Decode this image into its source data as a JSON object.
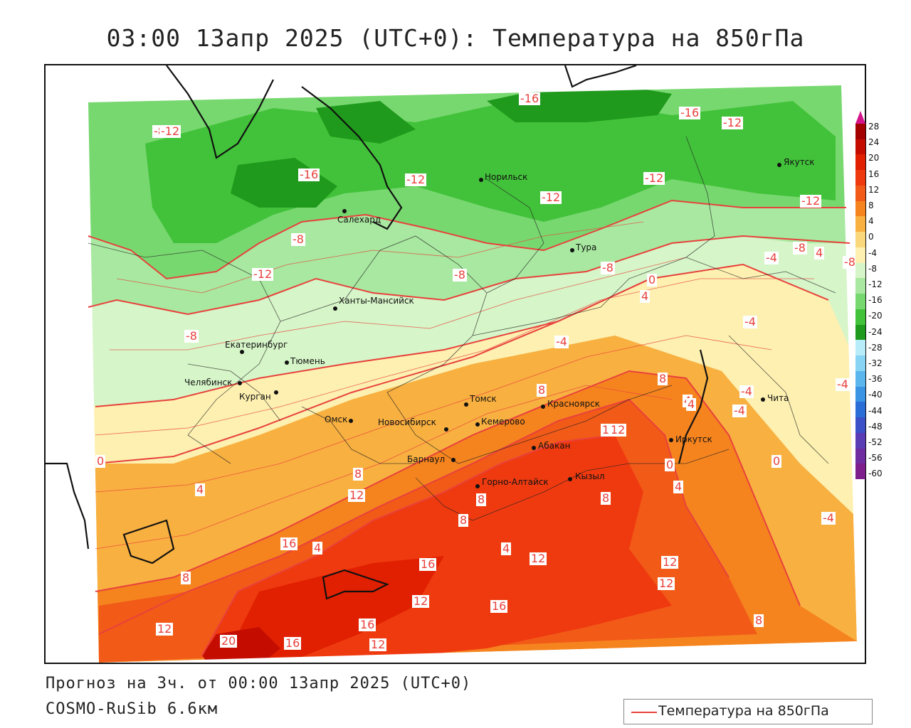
{
  "title": "03:00 13апр 2025 (UTC+0): Температура на 850гПа",
  "footer": {
    "forecast": "Прогноз на 3ч. от 00:00 13апр 2025 (UTC+0)",
    "model": "COSMO-RuSib 6.6км"
  },
  "legend": {
    "label": "Температура на 850гПа",
    "line_color": "#e8413c"
  },
  "colorbar": {
    "ticks": [
      "28",
      "24",
      "20",
      "16",
      "12",
      "8",
      "4",
      "0",
      "-4",
      "-8",
      "-12",
      "-16",
      "-20",
      "-24",
      "-28",
      "-32",
      "-36",
      "-40",
      "-44",
      "-48",
      "-52",
      "-56",
      "-60"
    ],
    "colors": [
      "#a30000",
      "#c40c00",
      "#e02000",
      "#ef3a10",
      "#f25a18",
      "#f5841f",
      "#f8b040",
      "#fbd77c",
      "#fdf0b0",
      "#d6f5c8",
      "#a8e8a0",
      "#78d870",
      "#42c23a",
      "#1f9a1c",
      "#b8ecf8",
      "#88d4f4",
      "#5cb6ee",
      "#3b94e4",
      "#2c6ed8",
      "#3c50c8",
      "#5a3cb4",
      "#6e2ca0",
      "#7e1e8c"
    ]
  },
  "cities": [
    {
      "name": "Салехард"
    },
    {
      "name": "Норильск"
    },
    {
      "name": "Якутск"
    },
    {
      "name": "Тура"
    },
    {
      "name": "Ханты-Мансийск"
    },
    {
      "name": "Екатеринбург"
    },
    {
      "name": "Тюмень"
    },
    {
      "name": "Челябинск"
    },
    {
      "name": "Курган"
    },
    {
      "name": "Омск"
    },
    {
      "name": "Новосибирск"
    },
    {
      "name": "Томск"
    },
    {
      "name": "Кемерово"
    },
    {
      "name": "Красноярск"
    },
    {
      "name": "Барнаул"
    },
    {
      "name": "Абакан"
    },
    {
      "name": "Горно-Алтайск"
    },
    {
      "name": "Кызыл"
    },
    {
      "name": "Иркутск"
    },
    {
      "name": "Чита"
    }
  ],
  "contour_labels": [
    "-8",
    "-16",
    "-16",
    "-12",
    "-12",
    "-16",
    "-12",
    "-12",
    "-12",
    "-12",
    "-12",
    "-8",
    "-8",
    "-4",
    "-8",
    "-8",
    "-8",
    "-12",
    "0",
    "4",
    "-4",
    "-4",
    "-8",
    "4",
    "0",
    "8",
    "8",
    "4",
    "4",
    "-4",
    "12",
    "4",
    "0",
    "0",
    "4",
    "8",
    "12",
    "8",
    "12",
    "8",
    "8",
    "4",
    "16",
    "16",
    "12",
    "12",
    "8",
    "12",
    "16",
    "12",
    "16",
    "20",
    "16",
    "12",
    "12",
    "8",
    "-4",
    "-4",
    "4",
    "-4"
  ]
}
